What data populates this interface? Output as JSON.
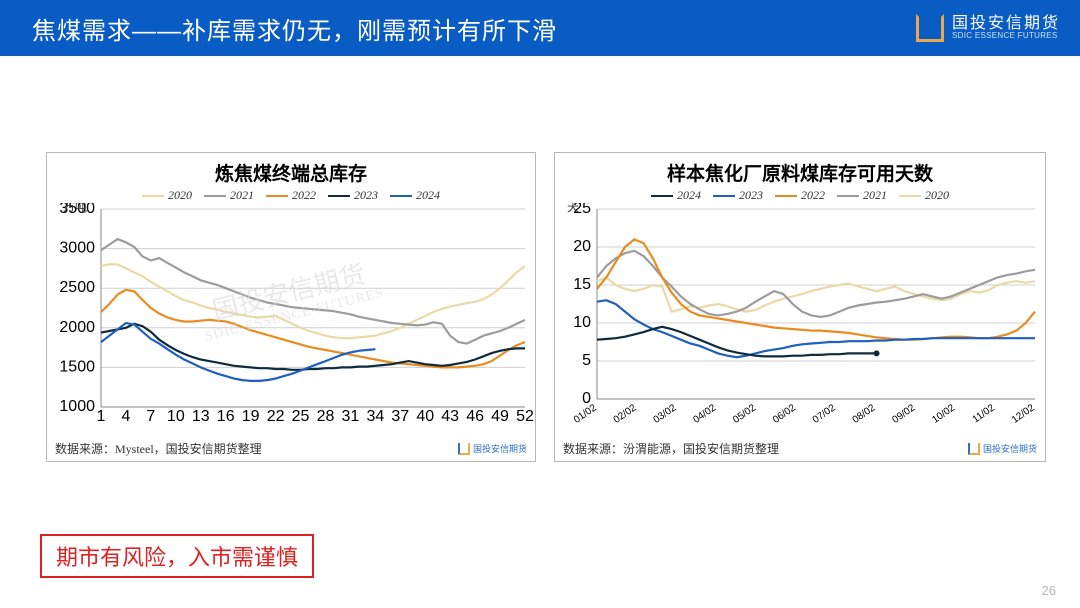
{
  "header": {
    "title": "焦煤需求——补库需求仍无，刚需预计有所下滑",
    "brand_cn": "国投安信期货",
    "brand_en": "SDIC ESSENCE FUTURES",
    "bg_color": "#0a5cc5",
    "accent_color": "#e9a94b"
  },
  "page_number": "26",
  "risk_warning": "期市有风险，入市需谨慎",
  "watermark_cn": "国投安信期货",
  "watermark_en": "SDIC-ESSENCE-FUTURES",
  "mini_logo_text": "国投安信期货",
  "chart_left": {
    "type": "line",
    "title": "炼焦煤终端总库存",
    "y_unit": "万吨",
    "source": "数据来源：Mysteel，国投安信期货整理",
    "x_ticks": [
      1,
      4,
      7,
      10,
      13,
      16,
      19,
      22,
      25,
      28,
      31,
      34,
      37,
      40,
      43,
      46,
      49,
      52
    ],
    "y_ticks": [
      1000,
      1500,
      2000,
      2500,
      3000,
      3500
    ],
    "ylim": [
      1000,
      3500
    ],
    "xlim": [
      1,
      52
    ],
    "background_color": "#ffffff",
    "grid_color": "#cfcfcf",
    "line_width": 2.2,
    "series_order": [
      "2020",
      "2021",
      "2022",
      "2023",
      "2024"
    ],
    "colors": {
      "2020": "#ead9a6",
      "2021": "#9c9c9c",
      "2022": "#e98b1f",
      "2023": "#0e2a3f",
      "2024": "#1f5fbf"
    },
    "series": {
      "2020": [
        2780,
        2800,
        2800,
        2750,
        2700,
        2650,
        2580,
        2520,
        2460,
        2400,
        2350,
        2320,
        2280,
        2250,
        2230,
        2200,
        2180,
        2160,
        2140,
        2130,
        2140,
        2150,
        2100,
        2050,
        2000,
        1960,
        1930,
        1900,
        1880,
        1870,
        1870,
        1880,
        1890,
        1900,
        1930,
        1960,
        2000,
        2050,
        2100,
        2150,
        2200,
        2240,
        2270,
        2290,
        2310,
        2330,
        2360,
        2420,
        2500,
        2600,
        2700,
        2780
      ],
      "2021": [
        2980,
        3050,
        3120,
        3080,
        3020,
        2900,
        2850,
        2880,
        2820,
        2760,
        2700,
        2650,
        2600,
        2570,
        2540,
        2500,
        2460,
        2420,
        2380,
        2350,
        2320,
        2300,
        2280,
        2260,
        2250,
        2240,
        2230,
        2220,
        2210,
        2190,
        2170,
        2140,
        2120,
        2100,
        2080,
        2060,
        2050,
        2040,
        2030,
        2040,
        2070,
        2050,
        1900,
        1820,
        1800,
        1850,
        1900,
        1930,
        1960,
        2000,
        2050,
        2100
      ],
      "2022": [
        2200,
        2300,
        2420,
        2480,
        2460,
        2350,
        2250,
        2180,
        2130,
        2100,
        2080,
        2080,
        2090,
        2100,
        2090,
        2080,
        2050,
        2010,
        1970,
        1940,
        1910,
        1880,
        1850,
        1820,
        1790,
        1760,
        1740,
        1720,
        1700,
        1680,
        1660,
        1640,
        1620,
        1600,
        1580,
        1560,
        1550,
        1540,
        1530,
        1520,
        1510,
        1500,
        1500,
        1500,
        1510,
        1520,
        1540,
        1580,
        1650,
        1720,
        1780,
        1820
      ],
      "2023": [
        1940,
        1960,
        1980,
        2000,
        2050,
        2020,
        1950,
        1850,
        1780,
        1720,
        1670,
        1630,
        1600,
        1580,
        1560,
        1540,
        1520,
        1510,
        1500,
        1490,
        1490,
        1480,
        1480,
        1470,
        1470,
        1480,
        1480,
        1490,
        1490,
        1500,
        1500,
        1510,
        1510,
        1520,
        1530,
        1540,
        1560,
        1580,
        1560,
        1540,
        1530,
        1520,
        1530,
        1550,
        1570,
        1600,
        1640,
        1680,
        1710,
        1730,
        1740,
        1740
      ],
      "2024": [
        1820,
        1900,
        1980,
        2060,
        2040,
        1950,
        1860,
        1800,
        1730,
        1660,
        1600,
        1550,
        1500,
        1460,
        1420,
        1390,
        1360,
        1340,
        1330,
        1330,
        1340,
        1360,
        1390,
        1420,
        1460,
        1500,
        1540,
        1580,
        1620,
        1660,
        1690,
        1710,
        1720,
        1730
      ]
    }
  },
  "chart_right": {
    "type": "line",
    "title": "样本焦化厂原料煤库存可用天数",
    "y_unit": "天",
    "source": "数据来源：汾渭能源，国投安信期货整理",
    "x_labels": [
      "01/02",
      "02/02",
      "03/02",
      "04/02",
      "05/02",
      "06/02",
      "07/02",
      "08/02",
      "09/02",
      "10/02",
      "11/02",
      "12/02"
    ],
    "y_ticks": [
      0,
      5,
      10,
      15,
      20,
      25
    ],
    "ylim": [
      0,
      25
    ],
    "background_color": "#ffffff",
    "grid_color": "#cfcfcf",
    "line_width": 2.2,
    "series_order": [
      "2024",
      "2023",
      "2022",
      "2021",
      "2020"
    ],
    "colors": {
      "2024": "#0e2a3f",
      "2023": "#1f5fbf",
      "2022": "#e98b1f",
      "2021": "#9c9c9c",
      "2020": "#ead9a6"
    },
    "series": {
      "2020": [
        15.5,
        16.0,
        15.0,
        14.5,
        14.2,
        14.5,
        15.0,
        14.8,
        11.5,
        11.8,
        12.2,
        12.0,
        12.3,
        12.5,
        12.2,
        11.8,
        11.5,
        11.7,
        12.3,
        12.8,
        13.2,
        13.5,
        13.8,
        14.2,
        14.5,
        14.8,
        15.0,
        15.2,
        14.8,
        14.5,
        14.2,
        14.5,
        14.8,
        14.2,
        13.8,
        13.5,
        13.2,
        13.0,
        13.2,
        13.8,
        14.2,
        14.0,
        14.3,
        15.0,
        15.3,
        15.5,
        15.3,
        15.5
      ],
      "2021": [
        16.0,
        17.5,
        18.5,
        19.2,
        19.5,
        18.8,
        17.5,
        16.0,
        14.8,
        13.5,
        12.5,
        11.8,
        11.2,
        11.0,
        11.2,
        11.5,
        12.0,
        12.8,
        13.5,
        14.2,
        13.8,
        12.5,
        11.5,
        11.0,
        10.8,
        11.0,
        11.5,
        12.0,
        12.3,
        12.5,
        12.7,
        12.8,
        13.0,
        13.2,
        13.5,
        13.8,
        13.5,
        13.2,
        13.5,
        14.0,
        14.5,
        15.0,
        15.5,
        16.0,
        16.3,
        16.5,
        16.8,
        17.0
      ],
      "2022": [
        14.5,
        16.0,
        18.0,
        20.0,
        21.0,
        20.5,
        18.5,
        16.0,
        14.0,
        12.5,
        11.5,
        11.0,
        10.8,
        10.6,
        10.4,
        10.2,
        10.0,
        9.8,
        9.6,
        9.4,
        9.3,
        9.2,
        9.1,
        9.0,
        9.0,
        8.9,
        8.8,
        8.7,
        8.5,
        8.3,
        8.1,
        8.0,
        7.9,
        7.8,
        7.8,
        7.9,
        8.0,
        8.1,
        8.2,
        8.2,
        8.1,
        8.0,
        8.0,
        8.2,
        8.5,
        9.0,
        10.0,
        11.5
      ],
      "2023": [
        12.8,
        13.0,
        12.5,
        11.5,
        10.5,
        9.8,
        9.2,
        8.8,
        8.3,
        7.8,
        7.3,
        7.0,
        6.5,
        6.0,
        5.7,
        5.5,
        5.7,
        6.0,
        6.3,
        6.5,
        6.7,
        7.0,
        7.2,
        7.3,
        7.4,
        7.5,
        7.5,
        7.6,
        7.6,
        7.6,
        7.7,
        7.7,
        7.8,
        7.8,
        7.9,
        7.9,
        8.0,
        8.0,
        8.0,
        8.0,
        8.0,
        8.0,
        8.0,
        8.0,
        8.0,
        8.0,
        8.0,
        8.0
      ],
      "2024": [
        7.8,
        7.9,
        8.0,
        8.2,
        8.5,
        8.8,
        9.2,
        9.5,
        9.2,
        8.8,
        8.3,
        7.8,
        7.3,
        6.8,
        6.4,
        6.1,
        5.9,
        5.7,
        5.6,
        5.6,
        5.6,
        5.7,
        5.7,
        5.8,
        5.8,
        5.9,
        5.9,
        6.0,
        6.0,
        6.0,
        6.0
      ]
    }
  }
}
